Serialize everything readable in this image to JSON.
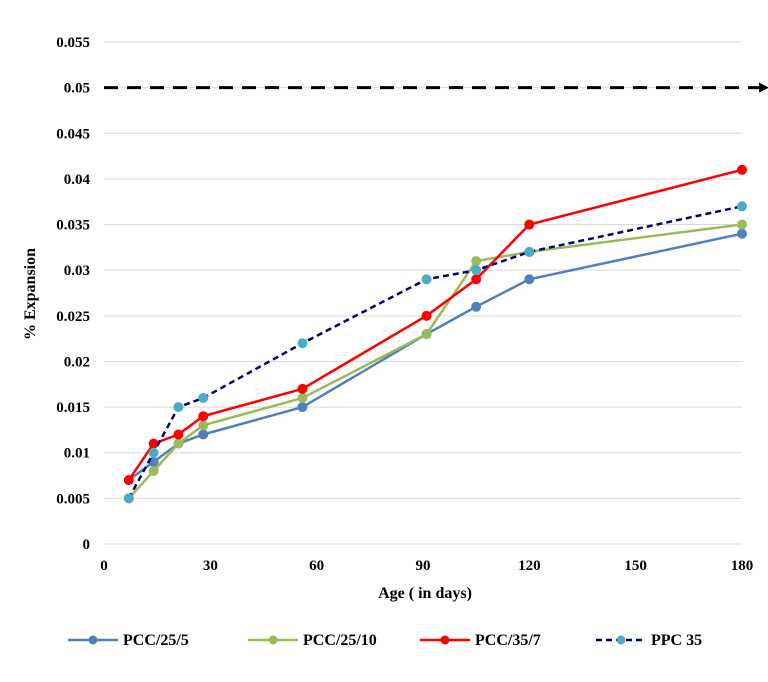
{
  "chart_data": {
    "type": "line",
    "xlabel": "Age ( in days)",
    "ylabel": "% Expansion",
    "xlim": [
      0,
      180
    ],
    "ylim": [
      0,
      0.055
    ],
    "x_ticks": [
      0,
      30,
      60,
      90,
      120,
      150,
      180
    ],
    "y_ticks": [
      0,
      0.005,
      0.01,
      0.015,
      0.02,
      0.025,
      0.03,
      0.035,
      0.04,
      0.045,
      0.05,
      0.055
    ],
    "y_tick_labels": [
      "0",
      "0.005",
      "0.01",
      "0.015",
      "0.02",
      "0.025",
      "0.03",
      "0.035",
      "0.04",
      "0.045",
      "0.05",
      "0.055"
    ],
    "grid": "horizontal",
    "legend_position": "bottom",
    "limit_line": {
      "y": 0.05,
      "style": "dashed-arrow",
      "color": "#000000"
    },
    "series": [
      {
        "name": "PCC/25/5",
        "color": "#4f81bd",
        "dashed": false,
        "x": [
          7,
          14,
          21,
          28,
          56,
          91,
          105,
          120,
          180
        ],
        "y": [
          0.007,
          0.009,
          0.011,
          0.012,
          0.015,
          0.023,
          0.026,
          0.029,
          0.034
        ]
      },
      {
        "name": "PCC/25/10",
        "color": "#9bbb59",
        "dashed": false,
        "x": [
          7,
          14,
          21,
          28,
          56,
          91,
          105,
          120,
          180
        ],
        "y": [
          0.005,
          0.008,
          0.011,
          0.013,
          0.016,
          0.023,
          0.031,
          0.032,
          0.035
        ]
      },
      {
        "name": "PCC/35/7",
        "color": "#ff0000",
        "dashed": false,
        "x": [
          7,
          14,
          21,
          28,
          56,
          91,
          105,
          120,
          180
        ],
        "y": [
          0.007,
          0.011,
          0.012,
          0.014,
          0.017,
          0.025,
          0.029,
          0.035,
          0.041
        ]
      },
      {
        "name": "PPC 35",
        "color": "#000080",
        "marker_color": "#4bacc6",
        "dashed": true,
        "x": [
          7,
          14,
          21,
          28,
          56,
          91,
          105,
          120,
          180
        ],
        "y": [
          0.005,
          0.01,
          0.015,
          0.016,
          0.022,
          0.029,
          0.03,
          0.032,
          0.037
        ]
      }
    ]
  }
}
